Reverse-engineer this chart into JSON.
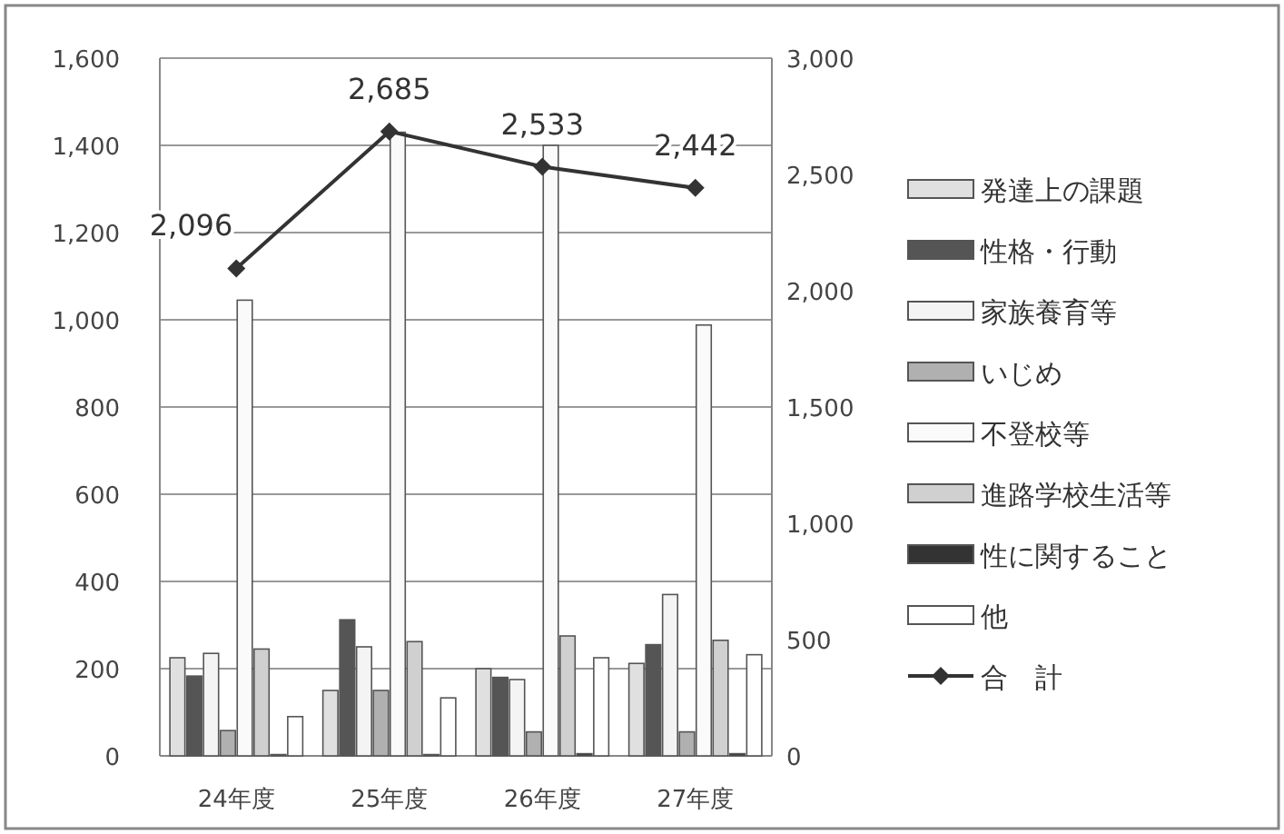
{
  "chart_data": {
    "type": "bar",
    "categories": [
      "24年度",
      "25年度",
      "26年度",
      "27年度"
    ],
    "series": [
      {
        "name": "発達上の課題",
        "color": "#e0e0e0",
        "values": [
          225,
          150,
          200,
          212
        ]
      },
      {
        "name": "性格・行動",
        "color": "#555555",
        "values": [
          183,
          312,
          180,
          255
        ]
      },
      {
        "name": "家族養育等",
        "color": "#f4f4f4",
        "values": [
          235,
          250,
          175,
          370
        ]
      },
      {
        "name": "いじめ",
        "color": "#b0b0b0",
        "values": [
          58,
          150,
          55,
          55
        ]
      },
      {
        "name": "不登校等",
        "color": "#fafafa",
        "values": [
          1045,
          1430,
          1400,
          988
        ]
      },
      {
        "name": "進路学校生活等",
        "color": "#d0d0d0",
        "values": [
          245,
          262,
          275,
          265
        ]
      },
      {
        "name": "性に関すること",
        "color": "#333333",
        "values": [
          3,
          3,
          5,
          5
        ]
      },
      {
        "name": "他",
        "color": "#ffffff",
        "values": [
          90,
          133,
          225,
          232
        ]
      },
      {
        "name": "合　計",
        "type": "line",
        "axis": "y2",
        "color": "#333333",
        "marker": "diamond",
        "values": [
          2096,
          2685,
          2533,
          2442
        ],
        "value_labels": [
          "2,096",
          "2,685",
          "2,533",
          "2,442"
        ]
      }
    ],
    "ylim": [
      0,
      1600
    ],
    "yticks": [
      {
        "value": 0,
        "label": "0"
      },
      {
        "value": 200,
        "label": "200"
      },
      {
        "value": 400,
        "label": "400"
      },
      {
        "value": 600,
        "label": "600"
      },
      {
        "value": 800,
        "label": "800"
      },
      {
        "value": 1000,
        "label": "1,000"
      },
      {
        "value": 1200,
        "label": "1,200"
      },
      {
        "value": 1400,
        "label": "1,400"
      },
      {
        "value": 1600,
        "label": "1,600"
      }
    ],
    "y2lim": [
      0,
      3000
    ],
    "y2ticks": [
      {
        "value": 0,
        "label": "0"
      },
      {
        "value": 500,
        "label": "500"
      },
      {
        "value": 1000,
        "label": "1,000"
      },
      {
        "value": 1500,
        "label": "1,500"
      },
      {
        "value": 2000,
        "label": "2,000"
      },
      {
        "value": 2500,
        "label": "2,500"
      },
      {
        "value": 3000,
        "label": "3,000"
      }
    ],
    "grid": "y",
    "legend": "right"
  }
}
